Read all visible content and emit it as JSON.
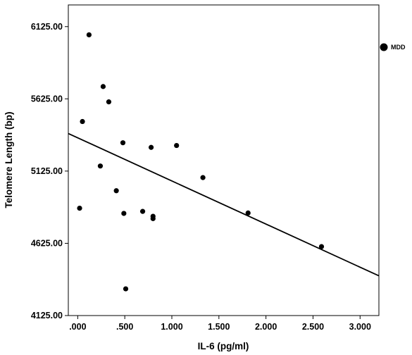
{
  "chart_data": {
    "type": "scatter",
    "xlabel": "IL-6 (pg/ml)",
    "ylabel": "Telomere Length (bp)",
    "xlim": [
      -0.1,
      3.2
    ],
    "ylim": [
      4125,
      6275
    ],
    "x_ticks": [
      0,
      0.5,
      1,
      1.5,
      2,
      2.5,
      3
    ],
    "x_tick_labels": [
      ".000",
      ".500",
      "1.000",
      "1.500",
      "2.000",
      "2.500",
      "3.000"
    ],
    "y_ticks": [
      4125,
      4625,
      5125,
      5625,
      6125
    ],
    "y_tick_labels": [
      "4125.00",
      "4625.00",
      "5125.00",
      "5625.00",
      "6125.00"
    ],
    "grid": false,
    "legend_position": "right",
    "series": [
      {
        "name": "MDD",
        "color": "#000000",
        "points": [
          {
            "x": 0.12,
            "y": 6068
          },
          {
            "x": 0.27,
            "y": 5710
          },
          {
            "x": 0.33,
            "y": 5604
          },
          {
            "x": 0.05,
            "y": 5468
          },
          {
            "x": 0.48,
            "y": 5321
          },
          {
            "x": 0.78,
            "y": 5289
          },
          {
            "x": 1.05,
            "y": 5302
          },
          {
            "x": 0.24,
            "y": 5160
          },
          {
            "x": 1.33,
            "y": 5080
          },
          {
            "x": 0.41,
            "y": 4989
          },
          {
            "x": 0.02,
            "y": 4868
          },
          {
            "x": 0.69,
            "y": 4846
          },
          {
            "x": 0.49,
            "y": 4832
          },
          {
            "x": 0.8,
            "y": 4812
          },
          {
            "x": 0.8,
            "y": 4796
          },
          {
            "x": 1.81,
            "y": 4835
          },
          {
            "x": 2.59,
            "y": 4602
          },
          {
            "x": 0.51,
            "y": 4310
          }
        ]
      }
    ],
    "fit_line": {
      "x": [
        -0.1,
        3.2
      ],
      "y": [
        5385,
        4400
      ]
    }
  }
}
